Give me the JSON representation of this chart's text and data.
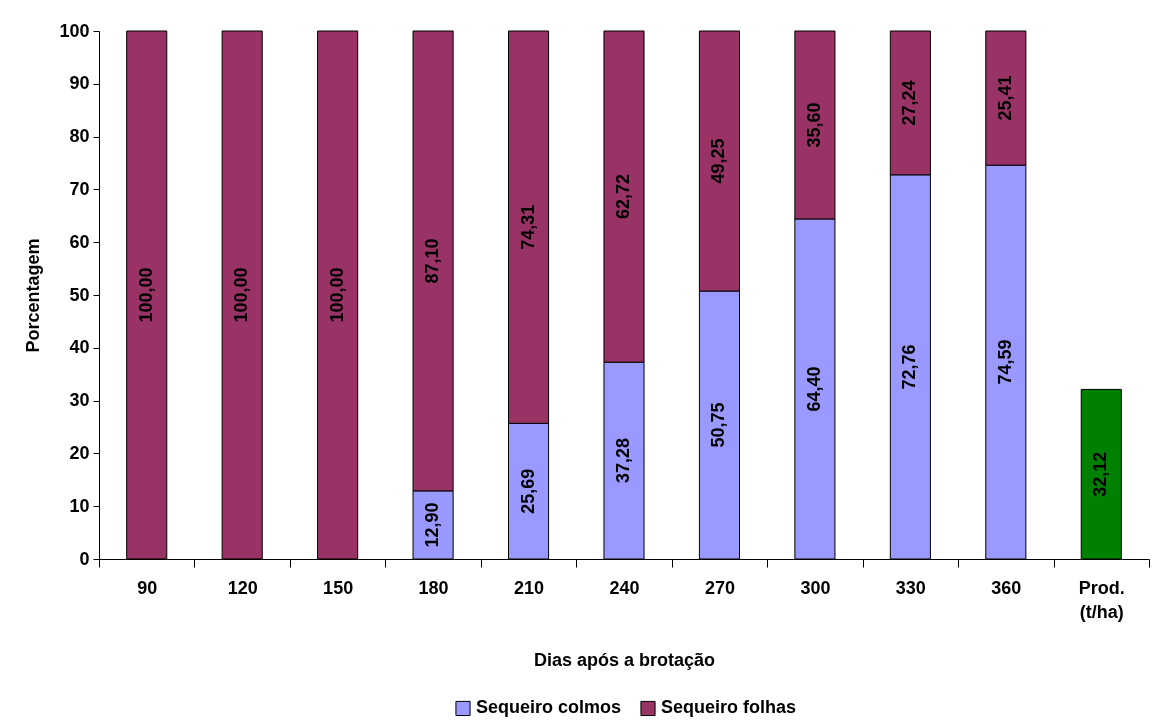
{
  "chart_data": {
    "type": "bar",
    "xlabel": "Dias após a brotação",
    "ylabel": "Porcentagem",
    "stacked": true,
    "grid": false,
    "legend": "bottom",
    "categories": [
      "90",
      "120",
      "150",
      "180",
      "210",
      "240",
      "270",
      "300",
      "330",
      "360",
      "Prod. (t/ha)"
    ],
    "ylim": [
      0,
      100
    ],
    "yticks": [
      0,
      10,
      20,
      30,
      40,
      50,
      60,
      70,
      80,
      90,
      100
    ],
    "series": [
      {
        "name": "Sequeiro colmos",
        "color": "#9999ff",
        "values": [
          null,
          null,
          null,
          12.9,
          25.69,
          37.28,
          50.75,
          64.4,
          72.76,
          74.59,
          null
        ],
        "value_labels": [
          null,
          null,
          null,
          "12,90",
          "25,69",
          "37,28",
          "50,75",
          "64,40",
          "72,76",
          "74,59",
          null
        ]
      },
      {
        "name": "Sequeiro folhas",
        "color": "#993366",
        "values": [
          100.0,
          100.0,
          100.0,
          87.1,
          74.31,
          62.72,
          49.25,
          35.6,
          27.24,
          25.41,
          null
        ],
        "value_labels": [
          "100,00",
          "100,00",
          "100,00",
          "87,10",
          "74,31",
          "62,72",
          "49,25",
          "35,60",
          "27,24",
          "25,41",
          null
        ]
      },
      {
        "color": "#008000",
        "values": [
          null,
          null,
          null,
          null,
          null,
          null,
          null,
          null,
          null,
          null,
          32.12
        ],
        "value_labels": [
          null,
          null,
          null,
          null,
          null,
          null,
          null,
          null,
          null,
          null,
          "32,12"
        ]
      }
    ]
  }
}
